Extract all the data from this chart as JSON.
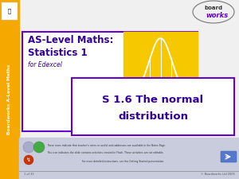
{
  "bg_color": "#f0f0f0",
  "sidebar_color": "#f5a800",
  "sidebar_text": "Boardworks A-Level Maths",
  "sidebar_text_color": "#ffffff",
  "main_box_border_color": "#6600cc",
  "main_box_bg": "#ffffff",
  "title_line1": "AS-Level Maths:",
  "title_line2": "Statistics 1",
  "subtitle": "for Edexcel",
  "title_color": "#330099",
  "subtitle_color": "#330099",
  "bell_box_color": "#f5c800",
  "bottom_box_bg": "#ffffff",
  "bottom_box_border": "#6600cc",
  "bottom_text_line1": "S 1.6 The normal",
  "bottom_text_line2": "distribution",
  "bottom_text_color": "#330099",
  "footer_bg": "#c8ccdc",
  "footer_text1": "These icons indicate that teacher's notes or useful web addresses are available in the Notes Page.",
  "footer_text2": "This icon indicates the slide contains activities created in Flash. These activities are not editable.",
  "footer_text3": "For more detailed instructions, see the Getting Started presentation.",
  "footer_color": "#333333",
  "page_text": "1 of 33",
  "copyright_text": "© Boardworks Ltd 2005",
  "logo_text1": "board",
  "logo_text2": "works",
  "logo_color1": "#333333",
  "logo_color2": "#6600cc"
}
